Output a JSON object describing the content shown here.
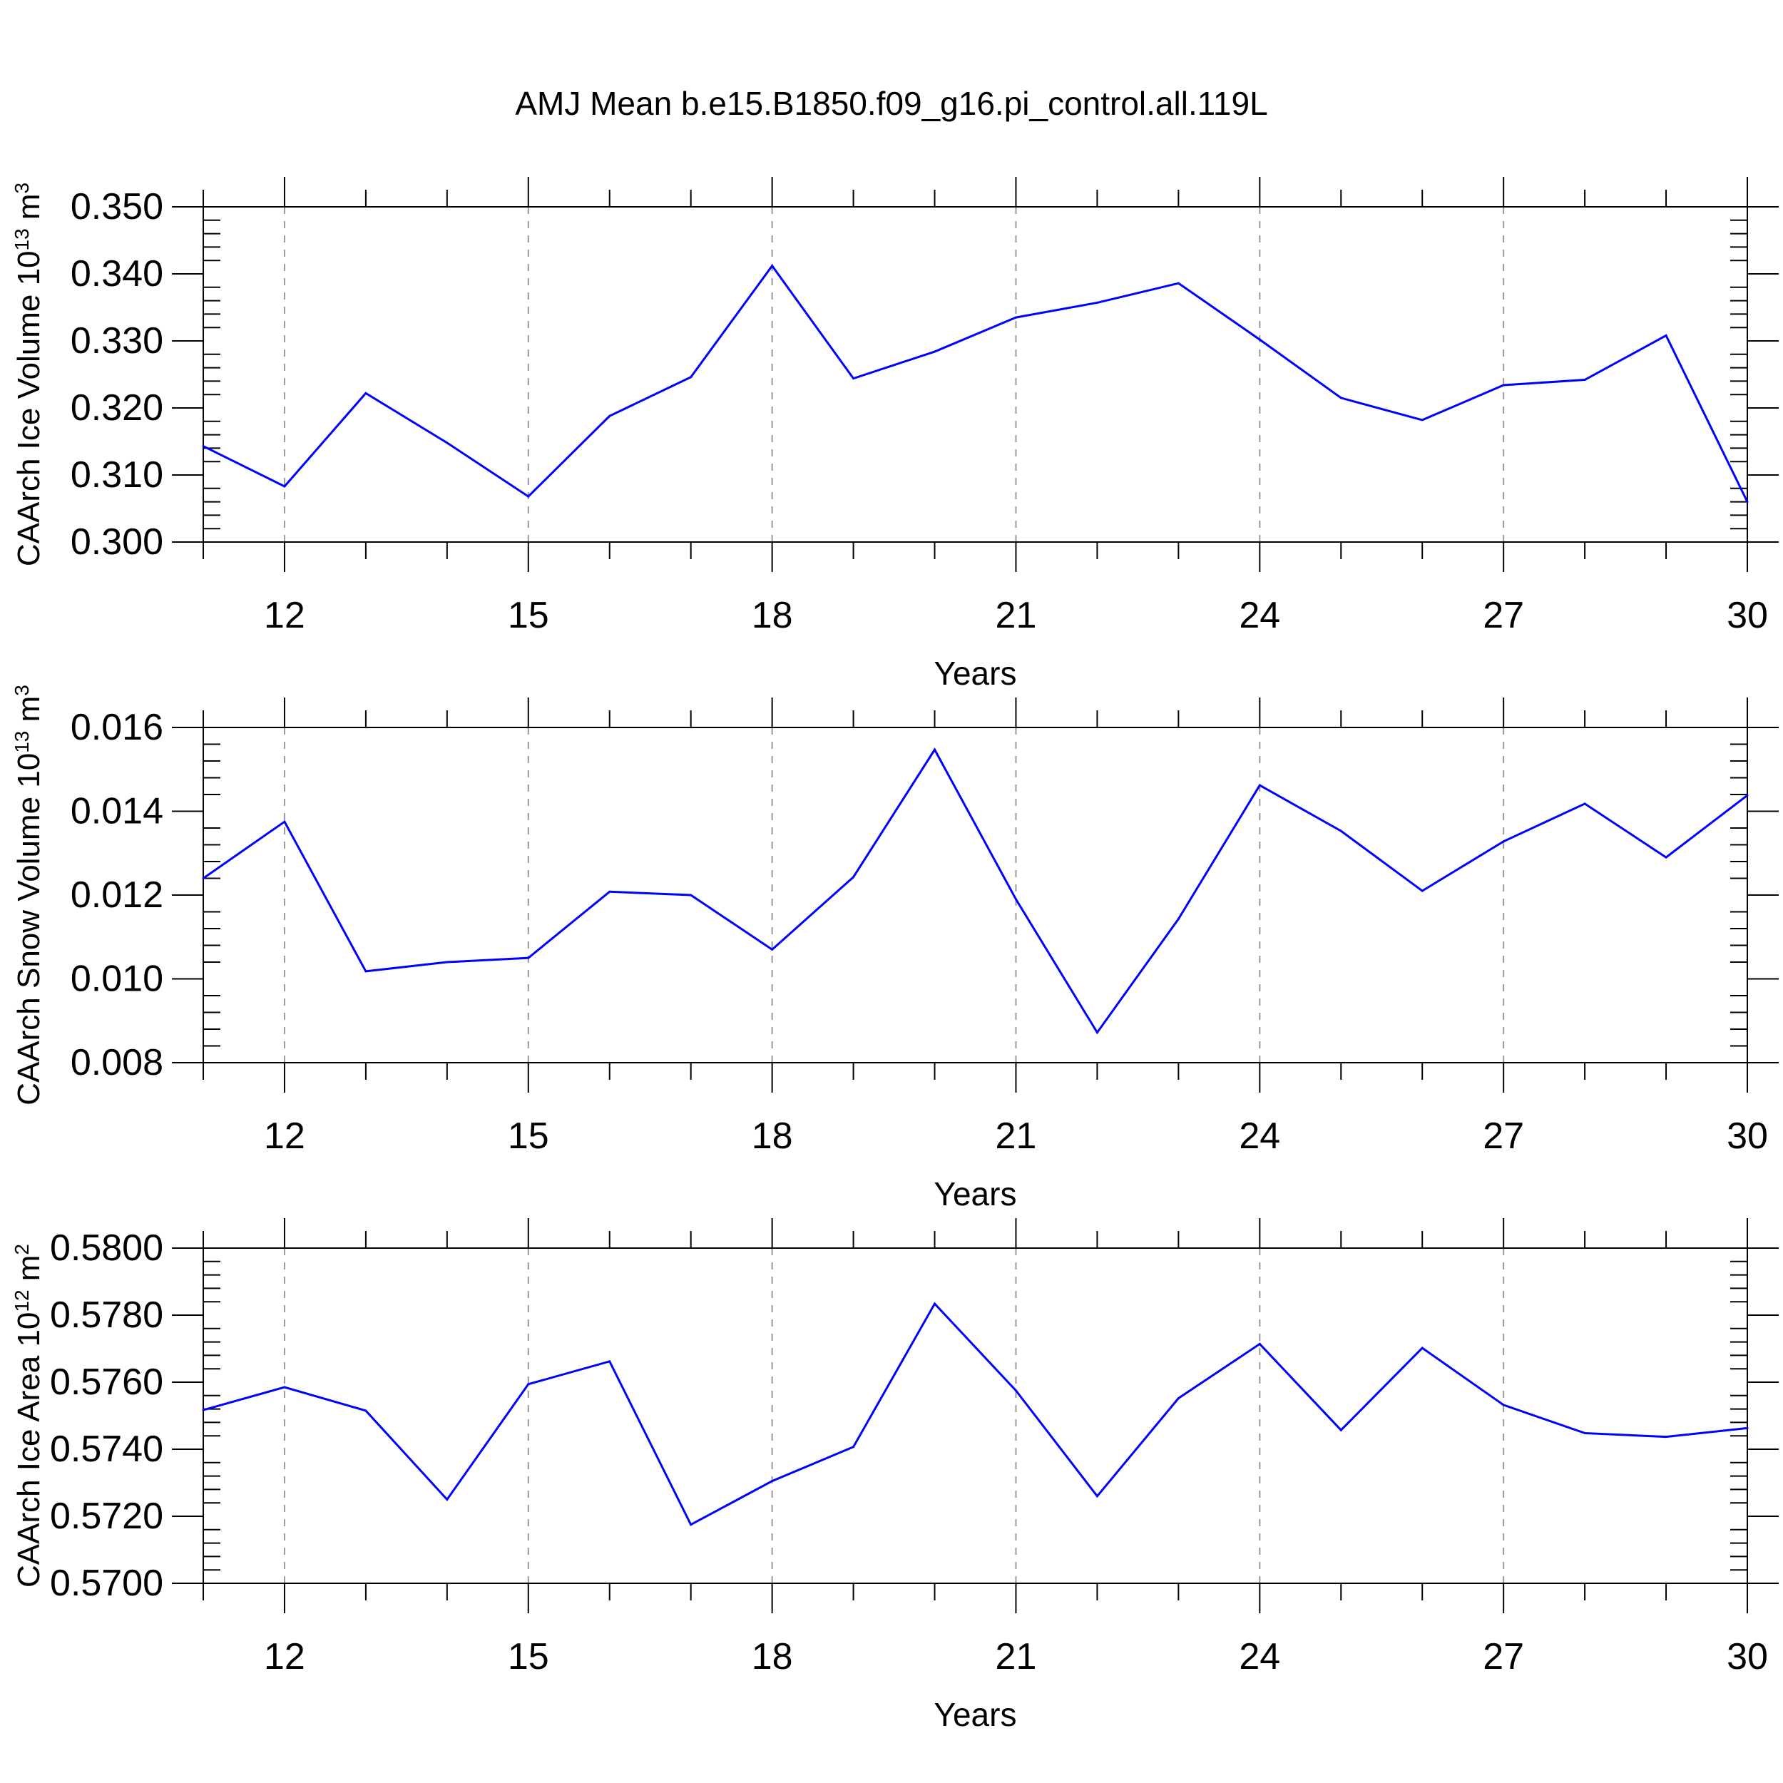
{
  "title": "AMJ Mean b.e15.B1850.f09_g16.pi_control.all.119L",
  "colors": {
    "line": "#0000ff",
    "axis": "#000000",
    "grid": "#999999"
  },
  "chart_data": [
    {
      "type": "line",
      "ylabel": {
        "text": "CAArch Ice Volume 10",
        "sup_exp": "13",
        "unit": " m",
        "sup_unit": "3"
      },
      "xlabel": "Years",
      "xlim": [
        11,
        30
      ],
      "ylim": [
        0.3,
        0.35
      ],
      "xticks": [
        12,
        15,
        18,
        21,
        24,
        27,
        30
      ],
      "yticks": [
        "0.300",
        "0.310",
        "0.320",
        "0.330",
        "0.340",
        "0.350"
      ],
      "grid": "x-dashed",
      "x": [
        11,
        12,
        13,
        14,
        15,
        16,
        17,
        18,
        19,
        20,
        21,
        22,
        23,
        24,
        25,
        26,
        27,
        28,
        29,
        30
      ],
      "series": [
        {
          "values": [
            0.3143,
            0.3083,
            0.3222,
            0.3148,
            0.3068,
            0.3188,
            0.3246,
            0.3412,
            0.3244,
            0.3284,
            0.3335,
            0.3357,
            0.3386,
            0.3302,
            0.3215,
            0.3182,
            0.3234,
            0.3242,
            0.3308,
            0.306
          ]
        }
      ]
    },
    {
      "type": "line",
      "ylabel": {
        "text": "CAArch Snow Volume 10",
        "sup_exp": "13",
        "unit": " m",
        "sup_unit": "3"
      },
      "xlabel": "Years",
      "xlim": [
        11,
        30
      ],
      "ylim": [
        0.008,
        0.016
      ],
      "xticks": [
        12,
        15,
        18,
        21,
        24,
        27,
        30
      ],
      "yticks": [
        "0.008",
        "0.010",
        "0.012",
        "0.014",
        "0.016"
      ],
      "grid": "x-dashed",
      "x": [
        11,
        12,
        13,
        14,
        15,
        16,
        17,
        18,
        19,
        20,
        21,
        22,
        23,
        24,
        25,
        26,
        27,
        28,
        29,
        30
      ],
      "series": [
        {
          "values": [
            0.0124,
            0.01375,
            0.01018,
            0.0104,
            0.0105,
            0.01208,
            0.012,
            0.0107,
            0.01243,
            0.01547,
            0.0119,
            0.00872,
            0.01143,
            0.01462,
            0.01353,
            0.0121,
            0.01328,
            0.01418,
            0.0129,
            0.01438
          ]
        }
      ]
    },
    {
      "type": "line",
      "ylabel": {
        "text": "CAArch Ice Area 10",
        "sup_exp": "12",
        "unit": " m",
        "sup_unit": "2"
      },
      "xlabel": "Years",
      "xlim": [
        11,
        30
      ],
      "ylim": [
        0.57,
        0.58
      ],
      "xticks": [
        12,
        15,
        18,
        21,
        24,
        27,
        30
      ],
      "yticks": [
        "0.5700",
        "0.5720",
        "0.5740",
        "0.5760",
        "0.5780",
        "0.5800"
      ],
      "grid": "x-dashed",
      "x": [
        11,
        12,
        13,
        14,
        15,
        16,
        17,
        18,
        19,
        20,
        21,
        22,
        23,
        24,
        25,
        26,
        27,
        28,
        29,
        30
      ],
      "series": [
        {
          "values": [
            0.57517,
            0.57585,
            0.57515,
            0.5725,
            0.57594,
            0.57662,
            0.57175,
            0.57305,
            0.57407,
            0.57834,
            0.57575,
            0.5726,
            0.57552,
            0.57714,
            0.57457,
            0.57702,
            0.57532,
            0.57448,
            0.57437,
            0.57463
          ]
        }
      ]
    }
  ]
}
